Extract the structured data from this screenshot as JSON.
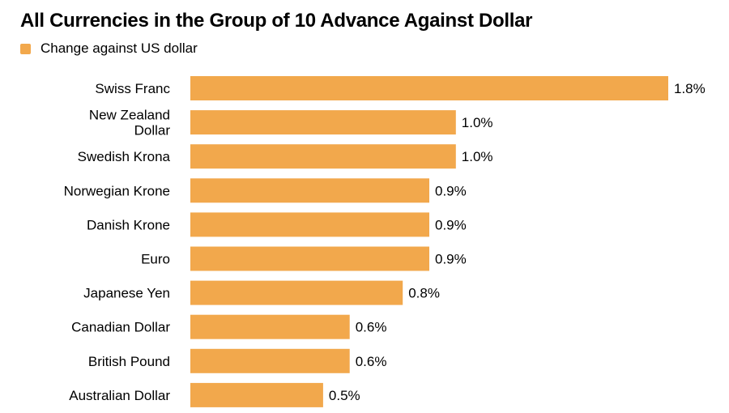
{
  "chart_data": {
    "type": "bar",
    "orientation": "horizontal",
    "title": "All Currencies in the Group of 10 Advance Against Dollar",
    "legend_position": "top-left",
    "grid": false,
    "series": [
      {
        "name": "Change against US dollar",
        "color": "#f2a84c",
        "values": [
          1.8,
          1.0,
          1.0,
          0.9,
          0.9,
          0.9,
          0.8,
          0.6,
          0.6,
          0.5
        ],
        "labels": [
          "1.8%",
          "1.0%",
          "1.0%",
          "0.9%",
          "0.9%",
          "0.9%",
          "0.8%",
          "0.6%",
          "0.6%",
          "0.5%"
        ]
      }
    ],
    "categories": [
      [
        "Swiss Franc"
      ],
      [
        "New Zealand",
        "Dollar"
      ],
      [
        "Swedish Krona"
      ],
      [
        "Norwegian Krone"
      ],
      [
        "Danish Krone"
      ],
      [
        "Euro"
      ],
      [
        "Japanese Yen"
      ],
      [
        "Canadian Dollar"
      ],
      [
        "British Pound"
      ],
      [
        "Australian Dollar"
      ]
    ],
    "xlim": [
      0,
      1.8
    ]
  }
}
